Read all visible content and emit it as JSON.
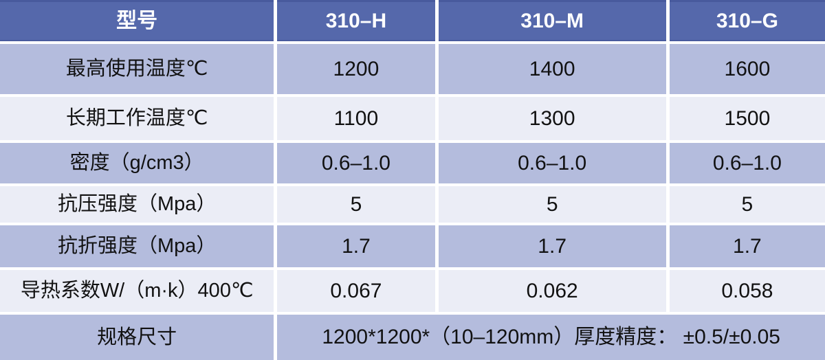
{
  "table": {
    "header": {
      "model_label": "型号",
      "columns": [
        "310–H",
        "310–M",
        "310–G"
      ]
    },
    "rows": [
      {
        "label": "最高使用温度℃",
        "values": [
          "1200",
          "1400",
          "1600"
        ]
      },
      {
        "label": "长期工作温度℃",
        "values": [
          "1100",
          "1300",
          "1500"
        ]
      },
      {
        "label": "密度（g/cm3）",
        "values": [
          "0.6–1.0",
          "0.6–1.0",
          "0.6–1.0"
        ]
      },
      {
        "label": "抗压强度（Mpa）",
        "values": [
          "5",
          "5",
          "5"
        ]
      },
      {
        "label": "抗折强度（Mpa）",
        "values": [
          "1.7",
          "1.7",
          "1.7"
        ]
      },
      {
        "label": "导热系数W/（m·k）400℃",
        "values": [
          "0.067",
          "0.062",
          "0.058"
        ]
      }
    ],
    "footer": {
      "label": "规格尺寸",
      "value": "1200*1200*（10–120mm）厚度精度： ±0.5/±0.05"
    }
  },
  "chart_data": {
    "type": "table",
    "columns": [
      "型号",
      "310–H",
      "310–M",
      "310–G"
    ],
    "rows": [
      [
        "最高使用温度℃",
        "1200",
        "1400",
        "1600"
      ],
      [
        "长期工作温度℃",
        "1100",
        "1300",
        "1500"
      ],
      [
        "密度（g/cm3）",
        "0.6–1.0",
        "0.6–1.0",
        "0.6–1.0"
      ],
      [
        "抗压强度（Mpa）",
        "5",
        "5",
        "5"
      ],
      [
        "抗折强度（Mpa）",
        "1.7",
        "1.7",
        "1.7"
      ],
      [
        "导热系数W/（m·k）400℃",
        "0.067",
        "0.062",
        "0.058"
      ],
      [
        "规格尺寸",
        "1200*1200*（10–120mm）厚度精度： ±0.5/±0.05"
      ]
    ]
  },
  "colors": {
    "header_bg": "#5568ab",
    "header_border": "#485a9d",
    "header_text": "#ffffff",
    "row_odd_bg": "#b4bcdd",
    "row_even_bg": "#ebedf6",
    "body_text": "#111111",
    "divider": "#ffffff"
  }
}
